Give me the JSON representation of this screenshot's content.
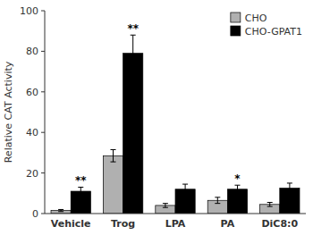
{
  "chart_data": {
    "type": "bar",
    "y_label": "Relative CAT Activity",
    "categories": [
      "Vehicle",
      "Trog",
      "LPA",
      "PA",
      "DiC8:0"
    ],
    "series": [
      {
        "name": "CHO",
        "color": "#b0b0b0",
        "values": [
          1.5,
          28.5,
          4.0,
          6.5,
          4.5
        ],
        "errors": [
          0.5,
          3.0,
          1.0,
          1.5,
          1.0
        ]
      },
      {
        "name": "CHO-GPAT1",
        "color": "#000000",
        "values": [
          11.0,
          79.0,
          12.0,
          12.0,
          12.5
        ],
        "errors": [
          2.0,
          9.0,
          2.5,
          2.0,
          2.5
        ],
        "significance": [
          "**",
          "**",
          null,
          "*",
          null
        ]
      }
    ],
    "ylim": [
      0,
      100
    ],
    "yticks": [
      0,
      20,
      40,
      60,
      80,
      100
    ],
    "grid": false,
    "legend": "upper right"
  }
}
